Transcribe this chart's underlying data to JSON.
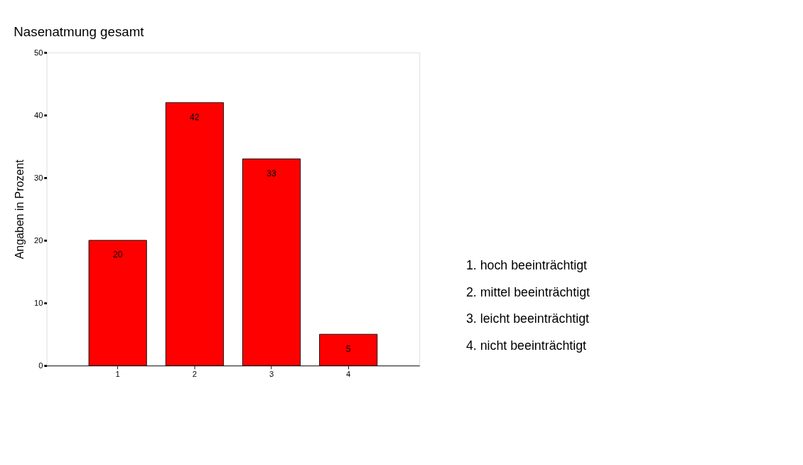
{
  "chart_data": {
    "type": "bar",
    "title": "Nasenatmung gesamt",
    "ylabel": "Angaben in Prozent",
    "categories": [
      "1",
      "2",
      "3",
      "4"
    ],
    "values": [
      20,
      42,
      33,
      5
    ],
    "color": "#ff0000",
    "ylim": [
      0,
      50
    ],
    "yticks": [
      0,
      10,
      20,
      30,
      40,
      50
    ],
    "grid": false,
    "data_labels": true,
    "annotations": [
      "1. hoch beeinträchtigt",
      "2. mittel beeinträchtigt",
      "3. leicht beeinträchtigt",
      "4. nicht beeinträchtigt"
    ]
  }
}
